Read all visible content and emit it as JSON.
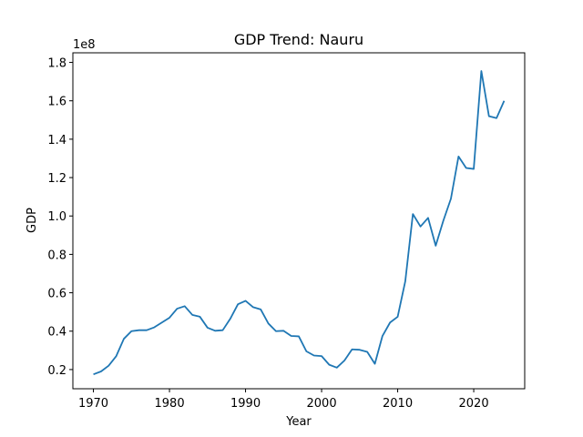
{
  "chart_data": {
    "type": "line",
    "title": "GDP Trend: Nauru",
    "xlabel": "Year",
    "ylabel": "GDP",
    "scale_label": "1e8",
    "x_ticks": [
      "1970",
      "1980",
      "1990",
      "2000",
      "2010",
      "2020"
    ],
    "y_ticks": [
      "0.2",
      "0.4",
      "0.6",
      "0.8",
      "1.0",
      "1.2",
      "1.4",
      "1.6",
      "1.8"
    ],
    "y_tick_values": [
      20000000.0,
      40000000.0,
      60000000.0,
      80000000.0,
      100000000.0,
      120000000.0,
      140000000.0,
      160000000.0,
      180000000.0
    ],
    "xlim": [
      1967.3,
      2026.7
    ],
    "ylim": [
      10000000,
      185000000
    ],
    "grid": false,
    "colors": {
      "line": "#1f77b4"
    },
    "series": [
      {
        "x": [
          1970,
          1971,
          1972,
          1973,
          1974,
          1975,
          1976,
          1977,
          1978,
          1979,
          1980,
          1981,
          1982,
          1983,
          1984,
          1985,
          1986,
          1987,
          1988,
          1989,
          1990,
          1991,
          1992,
          1993,
          1994,
          1995,
          1996,
          1997,
          1998,
          1999,
          2000,
          2001,
          2002,
          2003,
          2004,
          2005,
          2006,
          2007,
          2008,
          2009,
          2010,
          2011,
          2012,
          2013,
          2014,
          2015,
          2016,
          2017,
          2018,
          2019,
          2020,
          2021,
          2022,
          2023,
          2024
        ],
        "values": [
          17500000,
          19000000,
          22000000,
          27000000,
          36000000,
          40000000,
          40500000,
          40500000,
          42000000,
          44500000,
          47000000,
          51700000,
          53000000,
          48500000,
          47500000,
          41800000,
          40200000,
          40500000,
          46500000,
          54000000,
          55800000,
          52500000,
          51300000,
          44000000,
          40000000,
          40200000,
          37500000,
          37300000,
          29500000,
          27300000,
          27000000,
          22500000,
          21000000,
          24700000,
          30500000,
          30300000,
          29200000,
          23000000,
          37500000,
          44500000,
          47500000,
          66000000,
          101000000,
          94500000,
          99000000,
          84500000,
          97500000,
          109000000,
          131000000,
          125000000,
          124500000,
          175500000,
          152000000,
          151000000,
          160000000
        ]
      }
    ]
  }
}
